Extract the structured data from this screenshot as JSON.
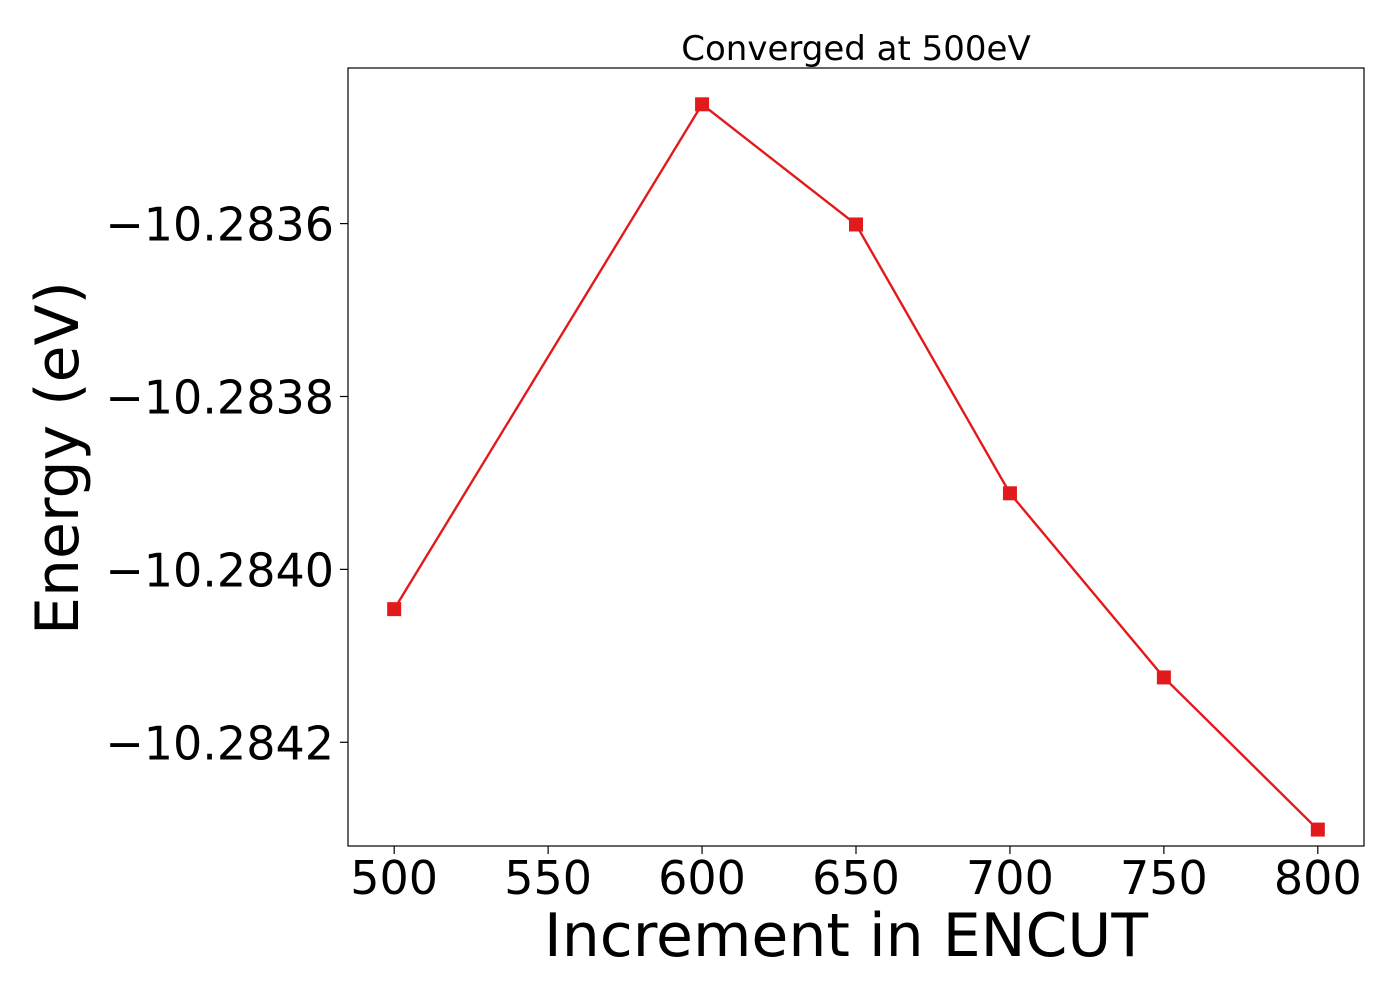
{
  "chart_data": {
    "type": "line",
    "title": "Converged at 500eV",
    "xlabel": "Increment in ENCUT",
    "ylabel": "Energy (eV)",
    "x": [
      500,
      600,
      650,
      700,
      750,
      800
    ],
    "series": [
      {
        "values": [
          -10.284046,
          -10.283462,
          -10.283601,
          -10.283912,
          -10.284125,
          -10.284301
        ],
        "color": "#e31a1c",
        "marker": "square"
      }
    ],
    "x_ticks": [
      500,
      550,
      600,
      650,
      700,
      750,
      800
    ],
    "x_tick_labels": [
      "500",
      "550",
      "600",
      "650",
      "700",
      "750",
      "800"
    ],
    "y_ticks": [
      -10.2836,
      -10.2838,
      -10.284,
      -10.2842
    ],
    "y_tick_labels": [
      "−10.2836",
      "−10.2838",
      "−10.2840",
      "−10.2842"
    ],
    "xlim": [
      485,
      815
    ],
    "ylim": [
      -10.28432,
      -10.28342
    ],
    "grid": false,
    "legend": "none"
  }
}
